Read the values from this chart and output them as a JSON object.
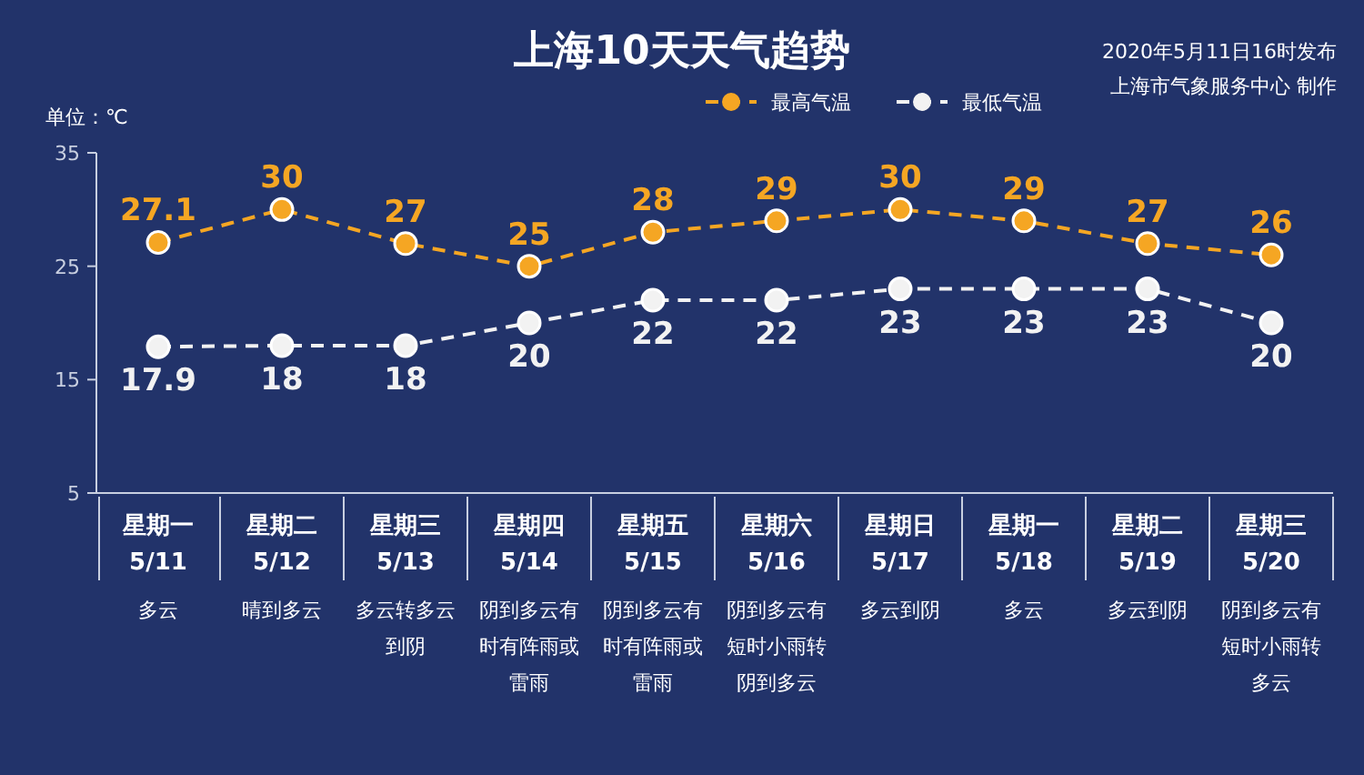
{
  "chart_data": {
    "type": "line",
    "title": "上海10天天气趋势",
    "ylabel": "单位：℃",
    "categories": [
      "星期一\n5/11",
      "星期二\n5/12",
      "星期三\n5/13",
      "星期四\n5/14",
      "星期五\n5/15",
      "星期六\n5/16",
      "星期日\n5/17",
      "星期一\n5/18",
      "星期二\n5/19",
      "星期三\n5/20"
    ],
    "series": [
      {
        "name": "最高气温",
        "color": "#f5a623",
        "values": [
          27.1,
          30,
          27,
          25,
          28,
          29,
          30,
          29,
          27,
          26
        ]
      },
      {
        "name": "最低气温",
        "color": "#f2f2f2",
        "values": [
          17.9,
          18,
          18,
          20,
          22,
          22,
          23,
          23,
          23,
          20
        ]
      }
    ],
    "ylim": [
      5,
      35
    ],
    "yticks": [
      5,
      15,
      25,
      35
    ],
    "grid": false,
    "legend": "top",
    "marker": "circle",
    "line_style": "dashed",
    "data_labels": true,
    "annotations": [
      "2020年5月11日16时发布",
      "上海市气象服务中心 制作",
      "多云",
      "晴到多云",
      "多云转多云到阴",
      "阴到多云有时有阵雨或雷雨",
      "阴到多云有时有阵雨或雷雨",
      "阴到多云有短时小雨转阴到多云",
      "多云到阴",
      "多云",
      "多云到阴",
      "阴到多云有短时小雨转多云"
    ]
  }
}
